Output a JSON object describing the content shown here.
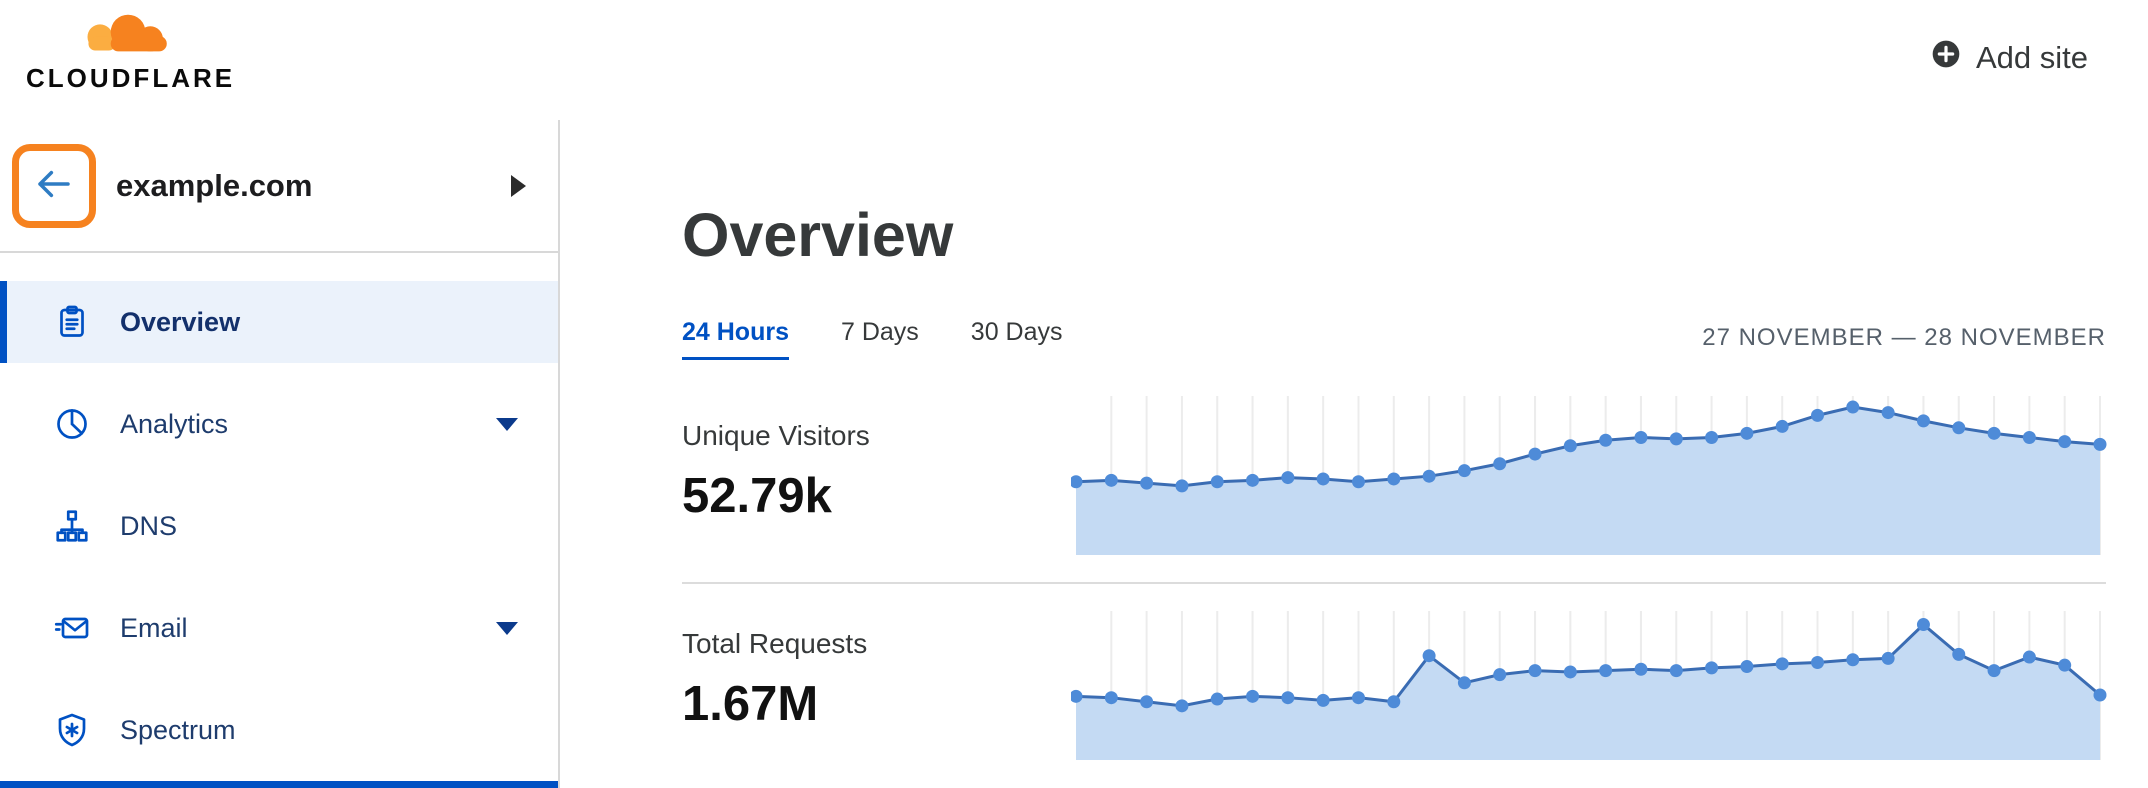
{
  "header": {
    "logo_text": "CLOUDFLARE",
    "add_site": "Add site"
  },
  "sidebar": {
    "site_name": "example.com",
    "items": [
      {
        "label": "Overview",
        "active": true,
        "has_caret": false
      },
      {
        "label": "Analytics",
        "active": false,
        "has_caret": true
      },
      {
        "label": "DNS",
        "active": false,
        "has_caret": false
      },
      {
        "label": "Email",
        "active": false,
        "has_caret": true
      },
      {
        "label": "Spectrum",
        "active": false,
        "has_caret": false
      }
    ]
  },
  "main": {
    "page_title": "Overview",
    "time_tabs": [
      {
        "label": "24 Hours",
        "active": true
      },
      {
        "label": "7 Days",
        "active": false
      },
      {
        "label": "30 Days",
        "active": false
      }
    ],
    "date_range": "27 NOVEMBER — 28 NOVEMBER",
    "metrics": [
      {
        "label": "Unique Visitors",
        "value": "52.79k"
      },
      {
        "label": "Total Requests",
        "value": "1.67M"
      }
    ]
  },
  "colors": {
    "brand_orange": "#f6821f",
    "brand_orange_light": "#fbad41",
    "link_blue": "#0051c3",
    "active_item_bg": "#ebf2fb",
    "chart_fill": "#c4daf3",
    "chart_line": "#3a6cb3",
    "chart_dot": "#4e8bd8",
    "chart_grid": "#ececec"
  },
  "chart_data": [
    {
      "type": "area",
      "title": "Unique Visitors",
      "summary_value": "52.79k",
      "x_unit": "hours over 24 Hours range (27 November — 28 November)",
      "values": [
        53,
        54,
        52,
        50,
        53,
        54,
        56,
        55,
        53,
        55,
        57,
        61,
        66,
        73,
        79,
        83,
        85,
        84,
        85,
        88,
        93,
        101,
        107,
        103,
        97,
        92,
        88,
        85,
        82,
        80
      ],
      "ylim": [
        0,
        115
      ],
      "grid": true,
      "legend": "none",
      "colors": {
        "fill": "#c4daf3",
        "line": "#3a6cb3",
        "dot": "#4e8bd8",
        "grid": "#ececec"
      }
    },
    {
      "type": "area",
      "title": "Total Requests",
      "summary_value": "1.67M",
      "x_unit": "hours over 24 Hours range (27 November — 28 November)",
      "values": [
        47,
        46,
        43,
        40,
        45,
        47,
        46,
        44,
        46,
        43,
        77,
        57,
        63,
        66,
        65,
        66,
        67,
        66,
        68,
        69,
        71,
        72,
        74,
        75,
        100,
        78,
        66,
        76,
        70,
        48
      ],
      "ylim": [
        0,
        110
      ],
      "grid": true,
      "legend": "none",
      "colors": {
        "fill": "#c4daf3",
        "line": "#3a6cb3",
        "dot": "#4e8bd8",
        "grid": "#ececec"
      }
    }
  ]
}
